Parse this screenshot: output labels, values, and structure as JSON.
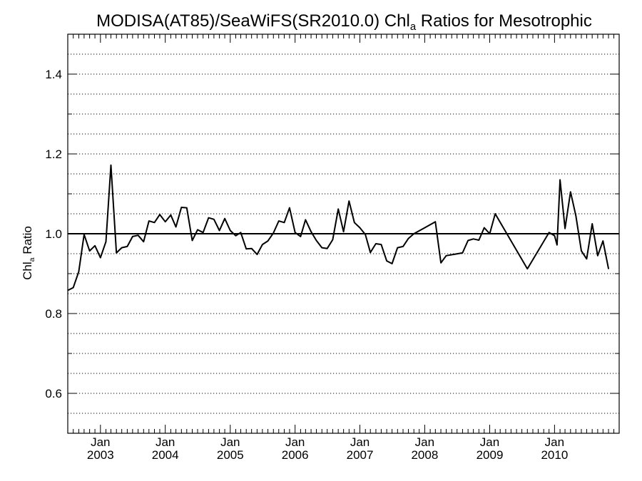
{
  "chart_data": {
    "type": "line",
    "title_main": "MODISA(AT85)/SeaWiFS(SR2010.0)  Chl",
    "title_sub": "a",
    "title_rest": " Ratios for Mesotrophic",
    "ylabel_main": "Chl",
    "ylabel_sub": "a",
    "ylabel_rest": " Ratio",
    "ylim": [
      0.5,
      1.5
    ],
    "yticks": [
      0.6,
      0.8,
      1.0,
      1.2,
      1.4
    ],
    "ytick_labels": [
      "0.6",
      "0.8",
      "1.0",
      "1.2",
      "1.4"
    ],
    "xlim": [
      "2002-07-01",
      "2010-12-31"
    ],
    "xticks": [
      {
        "date": "2003-01-01",
        "label_month": "Jan",
        "label_year": "2003"
      },
      {
        "date": "2004-01-01",
        "label_month": "Jan",
        "label_year": "2004"
      },
      {
        "date": "2005-01-01",
        "label_month": "Jan",
        "label_year": "2005"
      },
      {
        "date": "2006-01-01",
        "label_month": "Jan",
        "label_year": "2006"
      },
      {
        "date": "2007-01-01",
        "label_month": "Jan",
        "label_year": "2007"
      },
      {
        "date": "2008-01-01",
        "label_month": "Jan",
        "label_year": "2008"
      },
      {
        "date": "2009-01-01",
        "label_month": "Jan",
        "label_year": "2009"
      },
      {
        "date": "2010-01-01",
        "label_month": "Jan",
        "label_year": "2010"
      }
    ],
    "grid": "horizontal dotted every 0.05",
    "reference_line": 1.0,
    "colors": {
      "line": "#000000",
      "grid": "#000000",
      "background": "#ffffff"
    },
    "series": [
      {
        "points": [
          [
            "2002-07-01",
            0.858
          ],
          [
            "2002-08-01",
            0.865
          ],
          [
            "2002-09-01",
            0.905
          ],
          [
            "2002-10-01",
            0.998
          ],
          [
            "2002-11-01",
            0.957
          ],
          [
            "2002-12-01",
            0.97
          ],
          [
            "2003-01-01",
            0.94
          ],
          [
            "2003-02-01",
            0.98
          ],
          [
            "2003-03-01",
            1.172
          ],
          [
            "2003-04-01",
            0.952
          ],
          [
            "2003-05-01",
            0.965
          ],
          [
            "2003-06-01",
            0.968
          ],
          [
            "2003-07-01",
            0.993
          ],
          [
            "2003-08-01",
            0.996
          ],
          [
            "2003-09-01",
            0.98
          ],
          [
            "2003-10-01",
            1.032
          ],
          [
            "2003-11-01",
            1.028
          ],
          [
            "2003-12-01",
            1.048
          ],
          [
            "2004-01-01",
            1.03
          ],
          [
            "2004-02-01",
            1.047
          ],
          [
            "2004-03-01",
            1.017
          ],
          [
            "2004-04-01",
            1.066
          ],
          [
            "2004-05-01",
            1.065
          ],
          [
            "2004-06-01",
            0.983
          ],
          [
            "2004-07-01",
            1.01
          ],
          [
            "2004-08-01",
            1.003
          ],
          [
            "2004-09-01",
            1.04
          ],
          [
            "2004-10-01",
            1.036
          ],
          [
            "2004-11-01",
            1.008
          ],
          [
            "2004-12-01",
            1.038
          ],
          [
            "2005-01-01",
            1.008
          ],
          [
            "2005-02-01",
            0.995
          ],
          [
            "2005-03-01",
            1.003
          ],
          [
            "2005-04-01",
            0.962
          ],
          [
            "2005-05-01",
            0.963
          ],
          [
            "2005-06-01",
            0.948
          ],
          [
            "2005-07-01",
            0.973
          ],
          [
            "2005-08-01",
            0.982
          ],
          [
            "2005-09-01",
            1.002
          ],
          [
            "2005-10-01",
            1.032
          ],
          [
            "2005-11-01",
            1.028
          ],
          [
            "2005-12-01",
            1.065
          ],
          [
            "2006-01-01",
            1.003
          ],
          [
            "2006-02-01",
            0.993
          ],
          [
            "2006-03-01",
            1.035
          ],
          [
            "2006-04-01",
            1.005
          ],
          [
            "2006-05-01",
            0.983
          ],
          [
            "2006-06-01",
            0.965
          ],
          [
            "2006-07-01",
            0.963
          ],
          [
            "2006-08-01",
            0.985
          ],
          [
            "2006-09-01",
            1.062
          ],
          [
            "2006-10-01",
            1.005
          ],
          [
            "2006-11-01",
            1.082
          ],
          [
            "2006-12-01",
            1.028
          ],
          [
            "2007-01-01",
            1.015
          ],
          [
            "2007-02-01",
            0.998
          ],
          [
            "2007-03-01",
            0.953
          ],
          [
            "2007-04-01",
            0.975
          ],
          [
            "2007-05-01",
            0.973
          ],
          [
            "2007-06-01",
            0.932
          ],
          [
            "2007-07-01",
            0.925
          ],
          [
            "2007-08-01",
            0.965
          ],
          [
            "2007-09-01",
            0.968
          ],
          [
            "2007-10-01",
            0.988
          ],
          [
            "2007-11-01",
            1.0
          ],
          [
            "2008-01-01",
            1.015
          ],
          [
            "2008-03-01",
            1.03
          ],
          [
            "2008-04-01",
            0.927
          ],
          [
            "2008-05-01",
            0.945
          ],
          [
            "2008-08-01",
            0.952
          ],
          [
            "2008-09-01",
            0.983
          ],
          [
            "2008-10-01",
            0.987
          ],
          [
            "2008-11-01",
            0.984
          ],
          [
            "2008-12-01",
            1.015
          ],
          [
            "2009-01-01",
            1.0
          ],
          [
            "2009-02-01",
            1.05
          ],
          [
            "2009-08-01",
            0.912
          ],
          [
            "2009-12-01",
            1.003
          ],
          [
            "2010-01-01",
            0.995
          ],
          [
            "2010-01-15",
            0.972
          ],
          [
            "2010-02-01",
            1.135
          ],
          [
            "2010-03-01",
            1.013
          ],
          [
            "2010-04-01",
            1.105
          ],
          [
            "2010-05-01",
            1.045
          ],
          [
            "2010-06-01",
            0.957
          ],
          [
            "2010-07-01",
            0.937
          ],
          [
            "2010-08-01",
            1.025
          ],
          [
            "2010-09-01",
            0.945
          ],
          [
            "2010-10-01",
            0.982
          ],
          [
            "2010-11-01",
            0.912
          ]
        ]
      }
    ]
  }
}
